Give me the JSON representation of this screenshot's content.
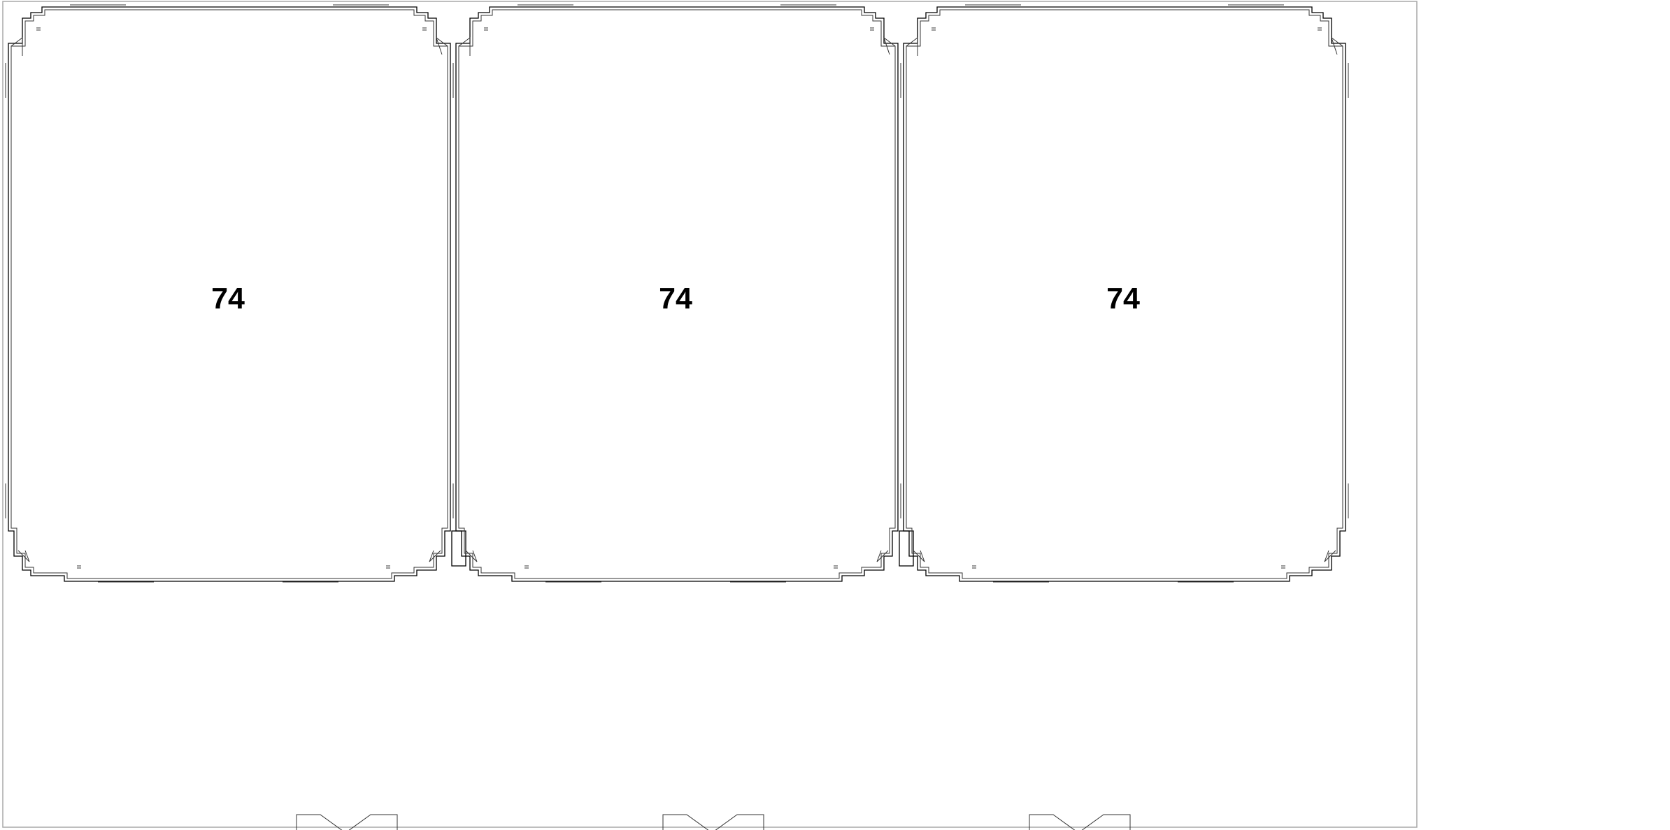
{
  "drawing": {
    "rooms": [
      {
        "label": "74"
      },
      {
        "label": "74"
      },
      {
        "label": "74"
      }
    ],
    "doors": [
      {
        "name": "door-1"
      },
      {
        "name": "door-2"
      },
      {
        "name": "door-3"
      }
    ],
    "colors": {
      "line": "#000000",
      "frame": "#a8a8a8",
      "background": "#ffffff"
    }
  }
}
